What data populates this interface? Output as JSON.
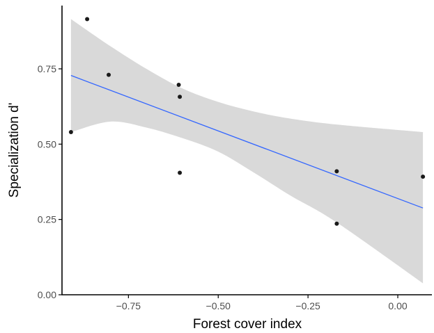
{
  "chart_data": {
    "type": "scatter",
    "title": "",
    "xlabel": "Forest cover index",
    "ylabel": "Specialization d'",
    "xlim": [
      -0.935,
      0.095
    ],
    "ylim": [
      0.0,
      0.96
    ],
    "x_ticks": [
      -0.75,
      -0.5,
      -0.25,
      0.0
    ],
    "x_tick_labels": [
      "−0.75",
      "−0.50",
      "−0.25",
      "0.00"
    ],
    "y_ticks": [
      0.0,
      0.25,
      0.5,
      0.75
    ],
    "y_tick_labels": [
      "0.00",
      "0.25",
      "0.50",
      "0.75"
    ],
    "grid": false,
    "points": [
      {
        "x": -0.865,
        "y": 0.915
      },
      {
        "x": -0.91,
        "y": 0.54
      },
      {
        "x": -0.805,
        "y": 0.73
      },
      {
        "x": -0.61,
        "y": 0.697
      },
      {
        "x": -0.607,
        "y": 0.657
      },
      {
        "x": -0.607,
        "y": 0.405
      },
      {
        "x": -0.17,
        "y": 0.41
      },
      {
        "x": -0.17,
        "y": 0.236
      },
      {
        "x": 0.07,
        "y": 0.392
      }
    ],
    "fit_line": {
      "method": "linear",
      "x": [
        -0.91,
        0.07
      ],
      "y": [
        0.728,
        0.288
      ]
    },
    "confidence_band": {
      "x": [
        -0.91,
        -0.8,
        -0.7,
        -0.6,
        -0.5,
        -0.4,
        -0.3,
        -0.17,
        0.07
      ],
      "lower": [
        0.54,
        0.575,
        0.555,
        0.52,
        0.475,
        0.405,
        0.33,
        0.24,
        0.038
      ],
      "upper": [
        0.915,
        0.825,
        0.75,
        0.685,
        0.64,
        0.608,
        0.585,
        0.565,
        0.54
      ]
    },
    "colors": {
      "points": "#1a1a1a",
      "fit_line": "#3366ff",
      "band": "#d9d9d9",
      "axis": "#000000",
      "tick_labels": "#4d4d4d"
    }
  }
}
